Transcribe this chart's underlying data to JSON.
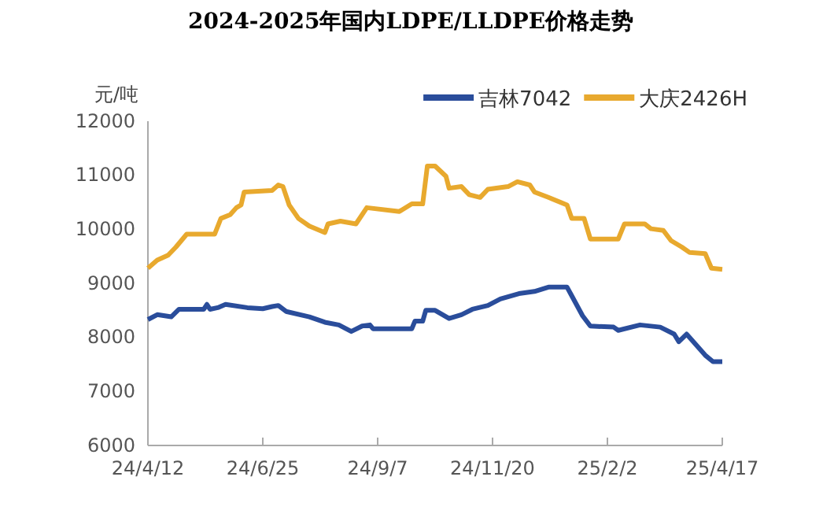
{
  "chart_data": {
    "type": "line",
    "title": "2024-2025年国内LDPE/LLDPE价格走势",
    "ylabel": "元/吨",
    "legend": "top right",
    "grid": false,
    "marker": "none",
    "line_style": "solid",
    "xlim": [
      "2024-04-12",
      "2025-04-17"
    ],
    "xticks": [
      {
        "value": "2024-04-12",
        "label": "24/4/12"
      },
      {
        "value": "2024-06-25",
        "label": "24/6/25"
      },
      {
        "value": "2024-09-07",
        "label": "24/9/7"
      },
      {
        "value": "2024-11-20",
        "label": "24/11/20"
      },
      {
        "value": "2025-02-02",
        "label": "25/2/2"
      },
      {
        "value": "2025-04-17",
        "label": "25/4/17"
      }
    ],
    "ylim": [
      6000,
      12000
    ],
    "yticks": [
      6000,
      7000,
      8000,
      9000,
      10000,
      11000,
      12000
    ],
    "series": [
      {
        "name": "吉林7042",
        "color": "#2a4d9b",
        "x": [
          "2024-04-12",
          "2024-04-18",
          "2024-04-27",
          "2024-05-02",
          "2024-05-18",
          "2024-05-20",
          "2024-05-22",
          "2024-05-27",
          "2024-06-01",
          "2024-06-15",
          "2024-06-25",
          "2024-07-01",
          "2024-07-05",
          "2024-07-10",
          "2024-07-25",
          "2024-08-04",
          "2024-08-13",
          "2024-08-21",
          "2024-08-28",
          "2024-09-02",
          "2024-09-04",
          "2024-09-29",
          "2024-10-01",
          "2024-10-06",
          "2024-10-08",
          "2024-10-14",
          "2024-10-23",
          "2024-10-31",
          "2024-11-07",
          "2024-11-17",
          "2024-11-25",
          "2024-12-07",
          "2024-12-17",
          "2024-12-26",
          "2025-01-07",
          "2025-01-10",
          "2025-01-17",
          "2025-01-22",
          "2025-02-06",
          "2025-02-09",
          "2025-02-23",
          "2025-03-08",
          "2025-03-17",
          "2025-03-20",
          "2025-03-25",
          "2025-04-06",
          "2025-04-11",
          "2025-04-17"
        ],
        "values": [
          8330,
          8420,
          8380,
          8520,
          8520,
          8610,
          8520,
          8550,
          8610,
          8550,
          8530,
          8570,
          8590,
          8480,
          8380,
          8280,
          8230,
          8110,
          8210,
          8230,
          8160,
          8160,
          8300,
          8300,
          8500,
          8500,
          8350,
          8420,
          8520,
          8590,
          8710,
          8810,
          8850,
          8930,
          8930,
          8770,
          8400,
          8210,
          8190,
          8130,
          8230,
          8190,
          8060,
          7920,
          8060,
          7670,
          7550,
          7550
        ]
      },
      {
        "name": "大庆2426H",
        "color": "#e8a92e",
        "x": [
          "2024-04-12",
          "2024-04-18",
          "2024-04-25",
          "2024-04-30",
          "2024-05-07",
          "2024-05-25",
          "2024-05-29",
          "2024-06-04",
          "2024-06-08",
          "2024-06-11",
          "2024-06-13",
          "2024-07-01",
          "2024-07-05",
          "2024-07-08",
          "2024-07-12",
          "2024-07-18",
          "2024-07-25",
          "2024-08-04",
          "2024-08-06",
          "2024-08-14",
          "2024-08-24",
          "2024-08-31",
          "2024-09-21",
          "2024-09-29",
          "2024-10-06",
          "2024-10-09",
          "2024-10-14",
          "2024-10-21",
          "2024-10-23",
          "2024-10-31",
          "2024-11-05",
          "2024-11-12",
          "2024-11-17",
          "2024-11-30",
          "2024-12-06",
          "2024-12-14",
          "2024-12-17",
          "2024-12-26",
          "2025-01-07",
          "2025-01-10",
          "2025-01-18",
          "2025-01-22",
          "2025-02-09",
          "2025-02-13",
          "2025-02-26",
          "2025-03-02",
          "2025-03-10",
          "2025-03-15",
          "2025-03-22",
          "2025-03-27",
          "2025-04-06",
          "2025-04-10",
          "2025-04-17"
        ],
        "values": [
          9280,
          9430,
          9520,
          9670,
          9910,
          9910,
          10200,
          10270,
          10400,
          10450,
          10690,
          10720,
          10820,
          10790,
          10450,
          10200,
          10060,
          9940,
          10100,
          10150,
          10100,
          10400,
          10330,
          10470,
          10470,
          11170,
          11170,
          10980,
          10760,
          10790,
          10640,
          10590,
          10740,
          10790,
          10880,
          10820,
          10690,
          10590,
          10450,
          10200,
          10200,
          9820,
          9820,
          10100,
          10100,
          10010,
          9980,
          9790,
          9670,
          9570,
          9550,
          9280,
          9260
        ]
      }
    ]
  }
}
